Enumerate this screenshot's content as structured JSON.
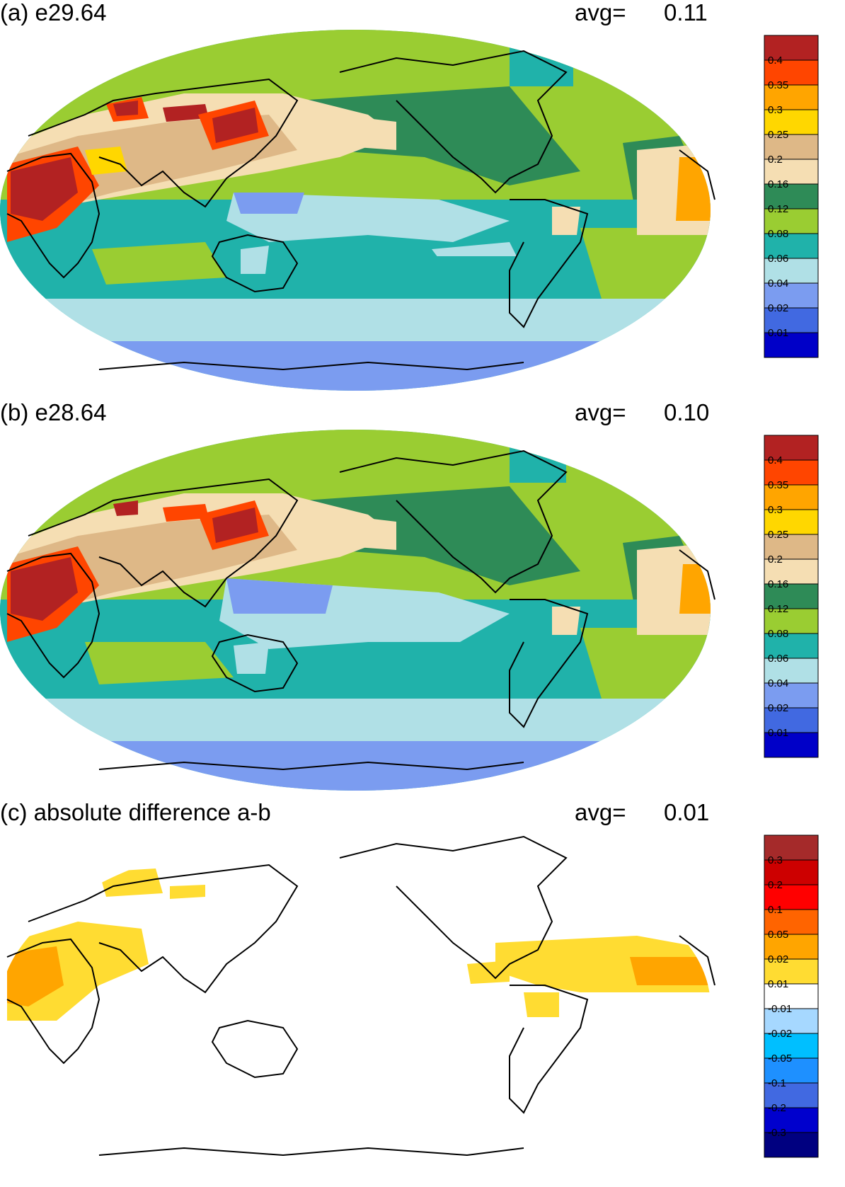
{
  "colors": {
    "blue_dark": "#0000c8",
    "blue": "#4169e1",
    "blue_light": "#7b9cf0",
    "cyan_light": "#b0e0e6",
    "teal": "#20b2aa",
    "yellow_green": "#9acd32",
    "sea_green": "#2e8b57",
    "beige": "#f5deb3",
    "tan": "#deb887",
    "gold": "#ffd700",
    "orange": "#ffa500",
    "red_orange": "#ff4500",
    "firebrick": "#b22222",
    "diff_navy": "#000080",
    "diff_blue_dark": "#0000cd",
    "diff_royal": "#4169e1",
    "diff_dodger": "#1e90ff",
    "diff_sky": "#00bfff",
    "diff_light": "#a6d8ff",
    "diff_white": "#ffffff",
    "diff_yellow": "#ffdc32",
    "diff_orange": "#ffa500",
    "diff_dark_orange": "#ff6400",
    "diff_red": "#ff0000",
    "diff_dark_red": "#cd0000",
    "diff_brown": "#a52a2a",
    "coastline": "#000000"
  },
  "panels": [
    {
      "label": "(a) e29.64",
      "avg_label": "avg=",
      "avg_value": "0.11",
      "colorbar_ticks": [
        "0.4",
        "0.35",
        "0.3",
        "0.25",
        "0.2",
        "0.16",
        "0.12",
        "0.08",
        "0.06",
        "0.04",
        "0.02",
        "0.01"
      ]
    },
    {
      "label": "(b) e28.64",
      "avg_label": "avg=",
      "avg_value": "0.10",
      "colorbar_ticks": [
        "0.4",
        "0.35",
        "0.3",
        "0.25",
        "0.2",
        "0.16",
        "0.12",
        "0.08",
        "0.06",
        "0.04",
        "0.02",
        "0.01"
      ]
    },
    {
      "label": "(c) absolute difference a-b",
      "avg_label": "avg=",
      "avg_value": "0.01",
      "colorbar_ticks": [
        "0.3",
        "0.2",
        "0.1",
        "0.05",
        "0.02",
        "0.01",
        "-0.01",
        "-0.02",
        "-0.05",
        "-0.1",
        "-0.2",
        "-0.3"
      ]
    }
  ]
}
